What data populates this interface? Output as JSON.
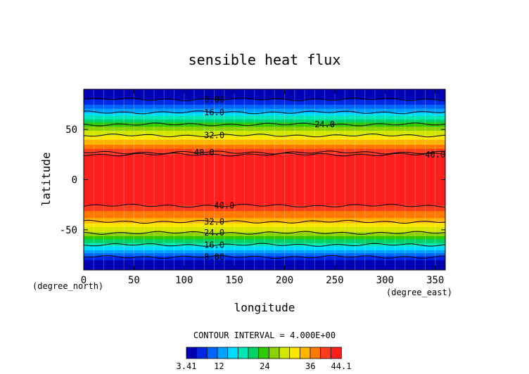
{
  "chart_data": {
    "type": "heatmap",
    "title": "sensible heat flux",
    "xlabel": "longitude",
    "ylabel": "latitude",
    "x_units": "(degree_east)",
    "y_units": "(degree_north)",
    "xlim": [
      0,
      360
    ],
    "ylim": [
      -90,
      90
    ],
    "x_ticks": [
      0,
      50,
      100,
      150,
      200,
      250,
      300,
      350
    ],
    "y_ticks": [
      -50,
      0,
      50
    ],
    "contour_interval_text": "CONTOUR INTERVAL = 4.000E+00",
    "colorbar": {
      "min": 3.41,
      "max": 44.1,
      "tick_labels": [
        "3.41",
        "12",
        "24",
        "36",
        "44.1"
      ],
      "tick_values": [
        3.41,
        12,
        24,
        36,
        44.1
      ],
      "colors": [
        "#0000b4",
        "#0028e6",
        "#0064ff",
        "#00a0ff",
        "#00dcff",
        "#00e6b4",
        "#00d264",
        "#32c800",
        "#8cd200",
        "#d2e600",
        "#ffe600",
        "#ffb400",
        "#ff7800",
        "#ff3c1e",
        "#ff1e1e"
      ]
    },
    "zonal_profile": [
      {
        "lat": -90,
        "value": 4
      },
      {
        "lat": -80,
        "value": 6
      },
      {
        "lat": -70,
        "value": 14
      },
      {
        "lat": -60,
        "value": 22
      },
      {
        "lat": -50,
        "value": 29
      },
      {
        "lat": -40,
        "value": 35
      },
      {
        "lat": -30,
        "value": 39
      },
      {
        "lat": -20,
        "value": 44
      },
      {
        "lat": 0,
        "value": 44
      },
      {
        "lat": 20,
        "value": 44
      },
      {
        "lat": 30,
        "value": 39
      },
      {
        "lat": 40,
        "value": 33
      },
      {
        "lat": 50,
        "value": 27
      },
      {
        "lat": 60,
        "value": 20
      },
      {
        "lat": 70,
        "value": 12
      },
      {
        "lat": 80,
        "value": 6
      },
      {
        "lat": 90,
        "value": 4
      }
    ],
    "contour_labels": [
      {
        "text": "8.00",
        "lon": 130,
        "lat": 80
      },
      {
        "text": "16.0",
        "lon": 130,
        "lat": 67
      },
      {
        "text": "24.0",
        "lon": 240,
        "lat": 55
      },
      {
        "text": "32.0",
        "lon": 130,
        "lat": 44
      },
      {
        "text": "40.0",
        "lon": 120,
        "lat": 27
      },
      {
        "text": "40.0",
        "lon": 350,
        "lat": 25
      },
      {
        "text": "40.0",
        "lon": 140,
        "lat": -26
      },
      {
        "text": "32.0",
        "lon": 130,
        "lat": -42
      },
      {
        "text": "24.0",
        "lon": 130,
        "lat": -53
      },
      {
        "text": "16.0",
        "lon": 130,
        "lat": -65
      },
      {
        "text": "8.00",
        "lon": 130,
        "lat": -77
      }
    ]
  }
}
